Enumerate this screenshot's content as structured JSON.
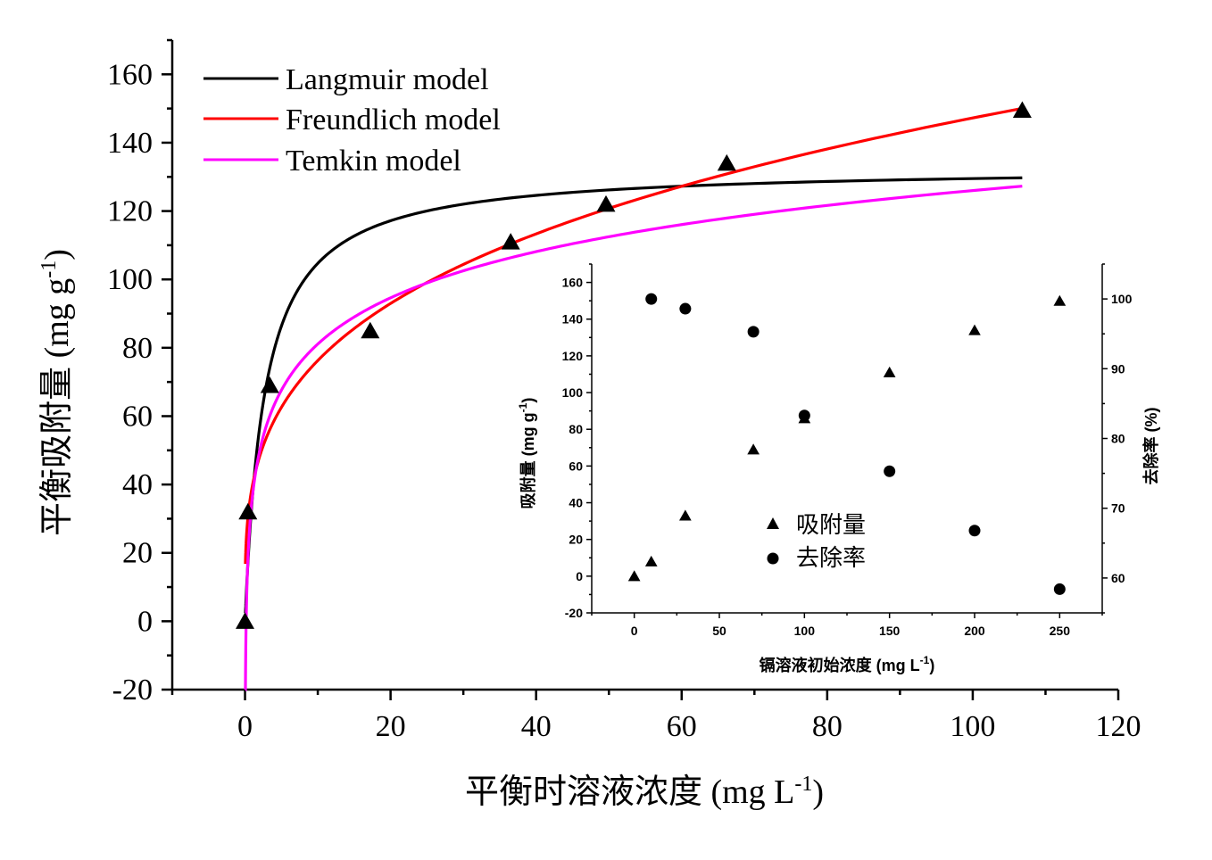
{
  "chart_data": [
    {
      "type": "scatter",
      "title": "",
      "xlabel": "平衡时溶液浓度 (mg L",
      "xlabel_sup": "-1",
      "xlabel_end": ")",
      "ylabel": "平衡吸附量 (mg g",
      "ylabel_sup": "-1",
      "ylabel_end": ")",
      "xlim": [
        -10,
        120
      ],
      "ylim": [
        -20,
        170
      ],
      "xticks": [
        0,
        20,
        40,
        60,
        80,
        100,
        120
      ],
      "yticks": [
        -20,
        0,
        20,
        40,
        60,
        80,
        100,
        120,
        140,
        160
      ],
      "legend_position": "top-left",
      "points": {
        "x": [
          0,
          0.4,
          3.4,
          17.2,
          36.5,
          49.6,
          66.2,
          106.8
        ],
        "y": [
          0,
          32,
          69,
          85,
          111,
          122,
          134,
          149.5
        ]
      },
      "series": [
        {
          "name": "Langmuir model",
          "color": "#000000",
          "model": "langmuir",
          "params": {
            "qm": 133,
            "KL": 0.37
          }
        },
        {
          "name": "Freundlich model",
          "color": "#ff0000",
          "model": "freundlich",
          "params": {
            "KF": 39.5,
            "n": 3.5
          }
        },
        {
          "name": "Temkin model",
          "color": "#ff00ff",
          "model": "temkin",
          "params": {
            "B": 19.5,
            "KT": 6.4
          }
        }
      ],
      "curve_x_range": [
        0.05,
        106.8
      ],
      "marker": "triangle"
    },
    {
      "type": "scatter",
      "title": "",
      "xlabel": "镉溶液初始浓度 (mg L",
      "xlabel_sup": "-1",
      "xlabel_end": ")",
      "ylabel": "吸附量 (mg g",
      "ylabel_sup": "-1",
      "ylabel_end": ")",
      "y2label": "去除率 (%)",
      "xlim": [
        -25,
        275
      ],
      "ylim": [
        -20,
        170
      ],
      "y2lim": [
        55,
        105
      ],
      "xticks": [
        0,
        50,
        100,
        150,
        200,
        250
      ],
      "yticks": [
        -20,
        0,
        20,
        40,
        60,
        80,
        100,
        120,
        140,
        160
      ],
      "y2ticks": [
        60,
        70,
        80,
        90,
        100
      ],
      "legend_position": "bottom-center",
      "series": [
        {
          "name": "吸附量",
          "marker": "triangle",
          "axis": "left",
          "x": [
            0,
            10,
            30,
            70,
            100,
            150,
            200,
            250
          ],
          "y": [
            0,
            8,
            33,
            69,
            86,
            111,
            134,
            150
          ]
        },
        {
          "name": "去除率",
          "marker": "circle",
          "axis": "right",
          "x": [
            10,
            30,
            70,
            100,
            150,
            200,
            250
          ],
          "y": [
            100,
            98.6,
            95.3,
            83.3,
            75.3,
            66.8,
            58.4
          ]
        }
      ]
    }
  ]
}
